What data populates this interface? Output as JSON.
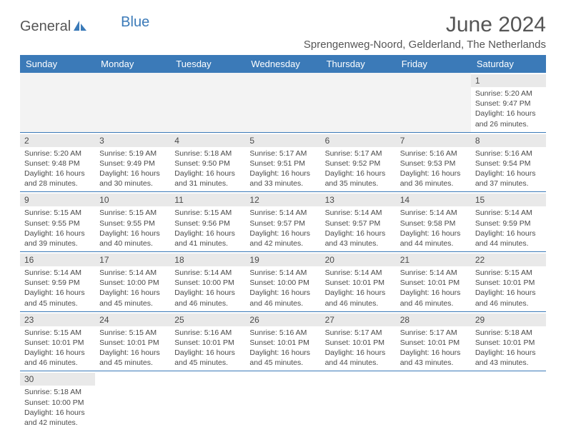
{
  "logo": {
    "text1": "General",
    "text2": "Blue",
    "icon_color": "#3b7ab8"
  },
  "title": "June 2024",
  "location": "Sprengenweg-Noord, Gelderland, The Netherlands",
  "colors": {
    "header_bg": "#3b7ab8",
    "header_text": "#ffffff",
    "daynum_bg": "#e9e9e9",
    "empty_bg": "#f3f3f3",
    "border": "#3b7ab8",
    "text": "#4a4a4a"
  },
  "weekdays": [
    "Sunday",
    "Monday",
    "Tuesday",
    "Wednesday",
    "Thursday",
    "Friday",
    "Saturday"
  ],
  "weeks": [
    [
      null,
      null,
      null,
      null,
      null,
      null,
      {
        "n": "1",
        "sr": "Sunrise: 5:20 AM",
        "ss": "Sunset: 9:47 PM",
        "d1": "Daylight: 16 hours",
        "d2": "and 26 minutes."
      }
    ],
    [
      {
        "n": "2",
        "sr": "Sunrise: 5:20 AM",
        "ss": "Sunset: 9:48 PM",
        "d1": "Daylight: 16 hours",
        "d2": "and 28 minutes."
      },
      {
        "n": "3",
        "sr": "Sunrise: 5:19 AM",
        "ss": "Sunset: 9:49 PM",
        "d1": "Daylight: 16 hours",
        "d2": "and 30 minutes."
      },
      {
        "n": "4",
        "sr": "Sunrise: 5:18 AM",
        "ss": "Sunset: 9:50 PM",
        "d1": "Daylight: 16 hours",
        "d2": "and 31 minutes."
      },
      {
        "n": "5",
        "sr": "Sunrise: 5:17 AM",
        "ss": "Sunset: 9:51 PM",
        "d1": "Daylight: 16 hours",
        "d2": "and 33 minutes."
      },
      {
        "n": "6",
        "sr": "Sunrise: 5:17 AM",
        "ss": "Sunset: 9:52 PM",
        "d1": "Daylight: 16 hours",
        "d2": "and 35 minutes."
      },
      {
        "n": "7",
        "sr": "Sunrise: 5:16 AM",
        "ss": "Sunset: 9:53 PM",
        "d1": "Daylight: 16 hours",
        "d2": "and 36 minutes."
      },
      {
        "n": "8",
        "sr": "Sunrise: 5:16 AM",
        "ss": "Sunset: 9:54 PM",
        "d1": "Daylight: 16 hours",
        "d2": "and 37 minutes."
      }
    ],
    [
      {
        "n": "9",
        "sr": "Sunrise: 5:15 AM",
        "ss": "Sunset: 9:55 PM",
        "d1": "Daylight: 16 hours",
        "d2": "and 39 minutes."
      },
      {
        "n": "10",
        "sr": "Sunrise: 5:15 AM",
        "ss": "Sunset: 9:55 PM",
        "d1": "Daylight: 16 hours",
        "d2": "and 40 minutes."
      },
      {
        "n": "11",
        "sr": "Sunrise: 5:15 AM",
        "ss": "Sunset: 9:56 PM",
        "d1": "Daylight: 16 hours",
        "d2": "and 41 minutes."
      },
      {
        "n": "12",
        "sr": "Sunrise: 5:14 AM",
        "ss": "Sunset: 9:57 PM",
        "d1": "Daylight: 16 hours",
        "d2": "and 42 minutes."
      },
      {
        "n": "13",
        "sr": "Sunrise: 5:14 AM",
        "ss": "Sunset: 9:57 PM",
        "d1": "Daylight: 16 hours",
        "d2": "and 43 minutes."
      },
      {
        "n": "14",
        "sr": "Sunrise: 5:14 AM",
        "ss": "Sunset: 9:58 PM",
        "d1": "Daylight: 16 hours",
        "d2": "and 44 minutes."
      },
      {
        "n": "15",
        "sr": "Sunrise: 5:14 AM",
        "ss": "Sunset: 9:59 PM",
        "d1": "Daylight: 16 hours",
        "d2": "and 44 minutes."
      }
    ],
    [
      {
        "n": "16",
        "sr": "Sunrise: 5:14 AM",
        "ss": "Sunset: 9:59 PM",
        "d1": "Daylight: 16 hours",
        "d2": "and 45 minutes."
      },
      {
        "n": "17",
        "sr": "Sunrise: 5:14 AM",
        "ss": "Sunset: 10:00 PM",
        "d1": "Daylight: 16 hours",
        "d2": "and 45 minutes."
      },
      {
        "n": "18",
        "sr": "Sunrise: 5:14 AM",
        "ss": "Sunset: 10:00 PM",
        "d1": "Daylight: 16 hours",
        "d2": "and 46 minutes."
      },
      {
        "n": "19",
        "sr": "Sunrise: 5:14 AM",
        "ss": "Sunset: 10:00 PM",
        "d1": "Daylight: 16 hours",
        "d2": "and 46 minutes."
      },
      {
        "n": "20",
        "sr": "Sunrise: 5:14 AM",
        "ss": "Sunset: 10:01 PM",
        "d1": "Daylight: 16 hours",
        "d2": "and 46 minutes."
      },
      {
        "n": "21",
        "sr": "Sunrise: 5:14 AM",
        "ss": "Sunset: 10:01 PM",
        "d1": "Daylight: 16 hours",
        "d2": "and 46 minutes."
      },
      {
        "n": "22",
        "sr": "Sunrise: 5:15 AM",
        "ss": "Sunset: 10:01 PM",
        "d1": "Daylight: 16 hours",
        "d2": "and 46 minutes."
      }
    ],
    [
      {
        "n": "23",
        "sr": "Sunrise: 5:15 AM",
        "ss": "Sunset: 10:01 PM",
        "d1": "Daylight: 16 hours",
        "d2": "and 46 minutes."
      },
      {
        "n": "24",
        "sr": "Sunrise: 5:15 AM",
        "ss": "Sunset: 10:01 PM",
        "d1": "Daylight: 16 hours",
        "d2": "and 45 minutes."
      },
      {
        "n": "25",
        "sr": "Sunrise: 5:16 AM",
        "ss": "Sunset: 10:01 PM",
        "d1": "Daylight: 16 hours",
        "d2": "and 45 minutes."
      },
      {
        "n": "26",
        "sr": "Sunrise: 5:16 AM",
        "ss": "Sunset: 10:01 PM",
        "d1": "Daylight: 16 hours",
        "d2": "and 45 minutes."
      },
      {
        "n": "27",
        "sr": "Sunrise: 5:17 AM",
        "ss": "Sunset: 10:01 PM",
        "d1": "Daylight: 16 hours",
        "d2": "and 44 minutes."
      },
      {
        "n": "28",
        "sr": "Sunrise: 5:17 AM",
        "ss": "Sunset: 10:01 PM",
        "d1": "Daylight: 16 hours",
        "d2": "and 43 minutes."
      },
      {
        "n": "29",
        "sr": "Sunrise: 5:18 AM",
        "ss": "Sunset: 10:01 PM",
        "d1": "Daylight: 16 hours",
        "d2": "and 43 minutes."
      }
    ],
    [
      {
        "n": "30",
        "sr": "Sunrise: 5:18 AM",
        "ss": "Sunset: 10:00 PM",
        "d1": "Daylight: 16 hours",
        "d2": "and 42 minutes."
      },
      null,
      null,
      null,
      null,
      null,
      null
    ]
  ]
}
